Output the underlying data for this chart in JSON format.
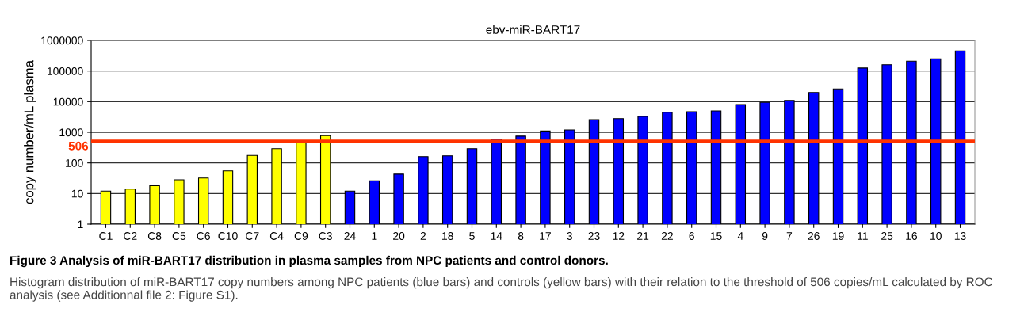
{
  "chart_data": {
    "type": "bar",
    "title": "ebv-miR-BART17",
    "ylabel": "copy number/mL plasma",
    "categories": [
      "C1",
      "C2",
      "C8",
      "C5",
      "C6",
      "C10",
      "C7",
      "C4",
      "C9",
      "C3",
      "24",
      "1",
      "20",
      "2",
      "18",
      "5",
      "14",
      "8",
      "17",
      "3",
      "23",
      "12",
      "21",
      "22",
      "6",
      "15",
      "4",
      "9",
      "7",
      "26",
      "19",
      "11",
      "25",
      "16",
      "10",
      "13"
    ],
    "values": [
      12,
      14,
      18,
      28,
      32,
      55,
      175,
      290,
      450,
      780,
      12,
      26,
      43,
      160,
      170,
      290,
      600,
      750,
      1100,
      1200,
      2600,
      2800,
      3300,
      4500,
      4700,
      5000,
      8000,
      9500,
      11000,
      20000,
      26000,
      125000,
      160000,
      210000,
      250000,
      450000
    ],
    "colors": [
      "#ffff00",
      "#ffff00",
      "#ffff00",
      "#ffff00",
      "#ffff00",
      "#ffff00",
      "#ffff00",
      "#ffff00",
      "#ffff00",
      "#ffff00",
      "#0000ff",
      "#0000ff",
      "#0000ff",
      "#0000ff",
      "#0000ff",
      "#0000ff",
      "#0000ff",
      "#0000ff",
      "#0000ff",
      "#0000ff",
      "#0000ff",
      "#0000ff",
      "#0000ff",
      "#0000ff",
      "#0000ff",
      "#0000ff",
      "#0000ff",
      "#0000ff",
      "#0000ff",
      "#0000ff",
      "#0000ff",
      "#0000ff",
      "#0000ff",
      "#0000ff",
      "#0000ff",
      "#0000ff"
    ],
    "log": "y",
    "ylim": [
      1,
      1000000
    ],
    "yticks": [
      1,
      10,
      100,
      1000,
      10000,
      100000,
      1000000
    ],
    "grid": "y",
    "ref_lines": [
      {
        "axis": "y",
        "value": 506,
        "label": "506",
        "color": "#ff3300"
      }
    ],
    "annotations": [
      "Figure 3 Analysis of miR-BART17 distribution in plasma samples from NPC patients and control donors.",
      "Histogram distribution of miR-BART17 copy numbers among NPC patients (blue bars) and controls (yellow bars) with their relation to the threshold of 506 copies/mL calculated by ROC analysis (see Additionnal file 2: Figure S1)."
    ]
  }
}
